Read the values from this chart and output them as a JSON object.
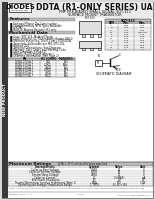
{
  "title": "DDTA (R1-ONLY SERIES) UA",
  "subtitle1": "PNP PRE-BIASED SMALL SIGNAL SOT-323",
  "subtitle2": "SURFACE MOUNT TRANSISTOR",
  "logo_text": "DIODES",
  "logo_sub": "INCORPORATED",
  "sidebar_text": "NEW PRODUCT",
  "features_title": "Features",
  "features": [
    "Epitaxial Planar Die Construction",
    "Complementary NPN Types Available",
    "(DDTA)",
    "Built-in Biasing Resistor: R1 only"
  ],
  "mech_title": "Mechanical Data",
  "mech": [
    "Case: SOT-323, Molded Plastic",
    "Case material: UL Flammability Rating 94V-0",
    "Moisture sensitivity: Level 1 per J-STD-020A",
    "Terminals: Solderable per MIL-STD-202,",
    "Method 208",
    "Terminal Connections: See Diagram",
    "Marking: Date Codes and Marking Code",
    "(See Diagrams & Page 2)",
    "Weight: 0.008 grams (approx.)",
    "Ordering Information (See Page 2)"
  ],
  "ordering_cols": [
    "PN",
    "R1 (OHM)",
    "MARKING"
  ],
  "ordering_rows": [
    [
      "DDTA113TUA-7",
      "1KΩ",
      "AXx"
    ],
    [
      "DDTA123TUA-7",
      "2.2KΩ",
      "AWx"
    ],
    [
      "DDTA124TUA-7",
      "22KΩ",
      "AVx"
    ],
    [
      "DDTA143TUA-7",
      "4.7KΩ",
      "AUx"
    ],
    [
      "DDTA144TUA-7",
      "47KΩ",
      "ATx"
    ],
    [
      "DDTA163TUA-7",
      "10KΩ",
      "ASx"
    ]
  ],
  "dim_title": "SOT-323",
  "dim_cols": [
    "DIM",
    "Min.",
    "Max."
  ],
  "dim_rows": [
    [
      "A",
      "0.88",
      "1.03"
    ],
    [
      "B",
      "0.70",
      "0.83"
    ],
    [
      "C",
      "0.70",
      "0.93"
    ],
    [
      "D",
      "0.00",
      "Nominal"
    ],
    [
      "E",
      "1.50",
      "1.70"
    ],
    [
      "F",
      "0.30",
      "1.40"
    ],
    [
      "G",
      "1.90",
      "2.10"
    ],
    [
      "J",
      "0.10",
      "0.20"
    ],
    [
      "K",
      "0.30",
      "0.50"
    ],
    [
      "L",
      "0.45",
      "0.65"
    ],
    [
      "M",
      "0.70",
      "0.80"
    ],
    [
      "T",
      "1",
      "0"
    ]
  ],
  "schematic_label": "SCHEMATIC DIAGRAM",
  "max_ratings_title": "Maximum Ratings",
  "max_ratings_note": "@TA = 25°C unless otherwise specified",
  "max_cols": [
    "Characteristic",
    "Symbol",
    "Value",
    "Unit"
  ],
  "max_rows": [
    [
      "Collector Base Voltage",
      "VCBO",
      "40",
      "V"
    ],
    [
      "Collector Emitter Voltage",
      "VCEO",
      "50",
      "V"
    ],
    [
      "Emitter Base Voltage",
      "VEBO",
      "10",
      "V"
    ],
    [
      "Collector Current",
      "IC",
      "0.1(MAX)",
      "mA"
    ],
    [
      "Total Power Dissipation",
      "PD",
      "0.2",
      "W"
    ],
    [
      "Thermal Resistance, Junction to Ambient (Note 1)",
      "RθJA",
      "500",
      "°C/W"
    ],
    [
      "Operating and Storage Temperature Range",
      "TJ, TSTG",
      "-55 to +150",
      "°C"
    ]
  ],
  "note_text": "Note: 1. When mounted, DDTA170 Baseunit, contact Diode and are from per all http://www.diodes.net/datasheets/ap00002.pdf",
  "footer_left": "DS88021 Rev. 3 - 2",
  "footer_center": "1 of 8",
  "footer_right": "DDTA (R1-ONLY SERIES) UA",
  "bg_color": "#d8d8d8",
  "white": "#ffffff",
  "black": "#000000",
  "near_black": "#111111",
  "dark_gray": "#555555",
  "med_gray": "#888888",
  "sidebar_bg": "#3a3a3a",
  "header_bg": "#ebebeb",
  "section_header_bg": "#bbbbbb",
  "table_row_alt": "#f5f5f5",
  "light_gray": "#e0e0e0"
}
